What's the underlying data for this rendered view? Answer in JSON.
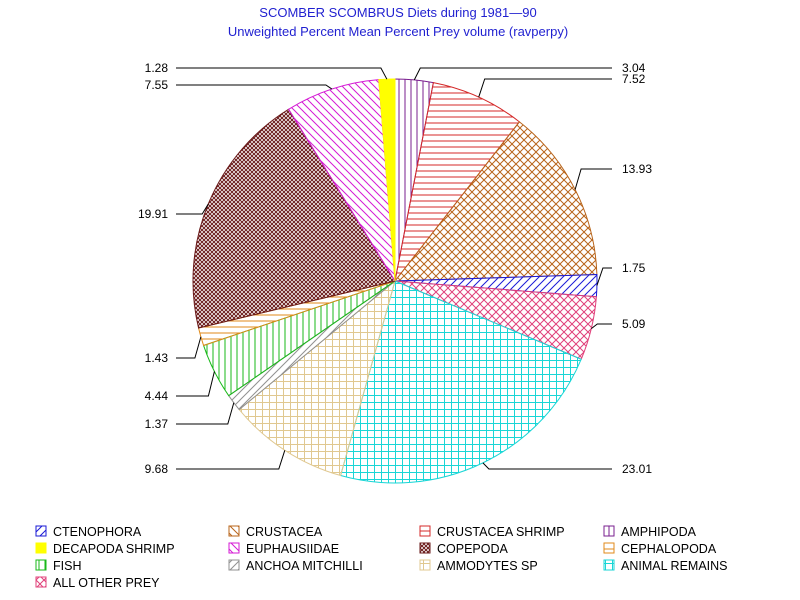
{
  "chart_data": {
    "type": "pie",
    "title": "SCOMBER SCOMBRUS Diets during 1981—90",
    "subtitle": "Unweighted Percent Mean Percent Prey  volume (ravperpy)",
    "slices": [
      {
        "name": "AMPHIPODA",
        "value": 3.04,
        "label": "3.04",
        "color": "#7a1f8f",
        "pattern": "vlines"
      },
      {
        "name": "CRUSTACEA SHRIMP",
        "value": 7.52,
        "label": "7.52",
        "color": "#d42828",
        "pattern": "hlines"
      },
      {
        "name": "CRUSTACEA",
        "value": 13.93,
        "label": "13.93",
        "color": "#b8641a",
        "pattern": "crosshatch"
      },
      {
        "name": "CTENOPHORA",
        "value": 1.75,
        "label": "1.75",
        "color": "#1a1ad6",
        "pattern": "diag"
      },
      {
        "name": "ALL OTHER PREY",
        "value": 5.09,
        "label": "5.09",
        "color": "#e0407a",
        "pattern": "crosshatch"
      },
      {
        "name": "ANIMAL REMAINS",
        "value": 23.01,
        "label": "23.01",
        "color": "#1ad6d6",
        "pattern": "grid"
      },
      {
        "name": "AMMODYTES SP",
        "value": 9.68,
        "label": "9.68",
        "color": "#e0c890",
        "pattern": "grid"
      },
      {
        "name": "ANCHOA MITCHILLI",
        "value": 1.37,
        "label": "1.37",
        "color": "#909090",
        "pattern": "diag"
      },
      {
        "name": "FISH",
        "value": 4.44,
        "label": "4.44",
        "color": "#1ab81a",
        "pattern": "vlines"
      },
      {
        "name": "CEPHALOPODA",
        "value": 1.43,
        "label": "1.43",
        "color": "#e08a1a",
        "pattern": "hlines"
      },
      {
        "name": "COPEPODA",
        "value": 19.91,
        "label": "19.91",
        "color": "#6a1a1a",
        "pattern": "dense"
      },
      {
        "name": "EUPHAUSIIDAE",
        "value": 7.55,
        "label": "7.55",
        "color": "#d41ad4",
        "pattern": "diagr"
      },
      {
        "name": "DECAPODA SHRIMP",
        "value": 1.28,
        "label": "1.28",
        "color": "#ffff00",
        "pattern": "solid"
      }
    ],
    "legend": {
      "placement": "bottom",
      "entries": [
        {
          "name": "CTENOPHORA",
          "color": "#1a1ad6",
          "pattern": "diag"
        },
        {
          "name": "CRUSTACEA",
          "color": "#b8641a",
          "pattern": "diagr"
        },
        {
          "name": "CRUSTACEA SHRIMP",
          "color": "#d42828",
          "pattern": "hlines"
        },
        {
          "name": "AMPHIPODA",
          "color": "#7a1f8f",
          "pattern": "vlines"
        },
        {
          "name": "DECAPODA SHRIMP",
          "color": "#ffff00",
          "pattern": "solid"
        },
        {
          "name": "EUPHAUSIIDAE",
          "color": "#d41ad4",
          "pattern": "diagr"
        },
        {
          "name": "COPEPODA",
          "color": "#6a1a1a",
          "pattern": "dense"
        },
        {
          "name": "CEPHALOPODA",
          "color": "#e08a1a",
          "pattern": "hlines"
        },
        {
          "name": "FISH",
          "color": "#1ab81a",
          "pattern": "vlines"
        },
        {
          "name": "ANCHOA MITCHILLI",
          "color": "#909090",
          "pattern": "diag"
        },
        {
          "name": "AMMODYTES SP",
          "color": "#e0c890",
          "pattern": "grid"
        },
        {
          "name": "ANIMAL REMAINS",
          "color": "#1ad6d6",
          "pattern": "grid"
        },
        {
          "name": "ALL OTHER PREY",
          "color": "#e0407a",
          "pattern": "crosshatch"
        }
      ]
    }
  }
}
